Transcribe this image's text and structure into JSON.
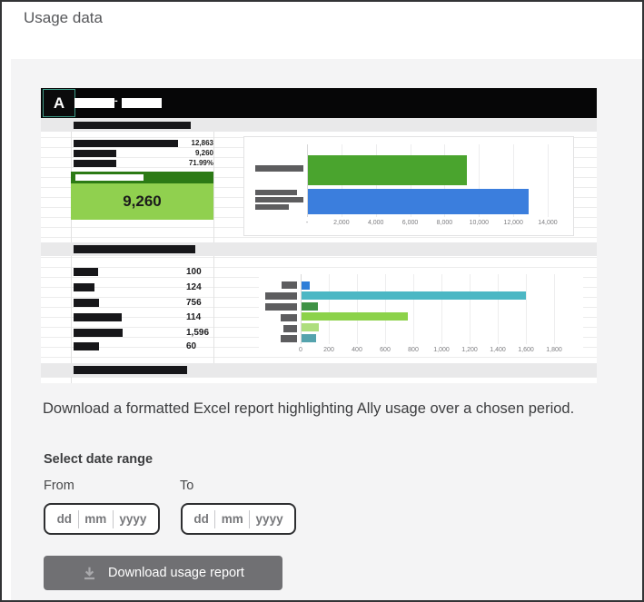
{
  "page": {
    "title": "Usage data"
  },
  "panel": {
    "description": "Download a formatted Excel report highlighting Ally usage over a chosen period.",
    "date_range": {
      "heading": "Select date range",
      "from_label": "From",
      "to_label": "To",
      "placeholders": {
        "day": "dd",
        "month": "mm",
        "year": "yyyy"
      }
    },
    "download_button": {
      "label": "Download usage report"
    }
  },
  "report_preview": {
    "logo_letter": "A",
    "header_separator": "-",
    "summary": {
      "rows": [
        {
          "value": "12,863"
        },
        {
          "value": "9,260"
        },
        {
          "value": "71.99%"
        }
      ],
      "highlight_value": "9,260"
    },
    "detail": {
      "rows": [
        {
          "value": "100"
        },
        {
          "value": "124"
        },
        {
          "value": "756"
        },
        {
          "value": "114"
        },
        {
          "value": "1,596"
        },
        {
          "value": "60"
        }
      ]
    }
  },
  "chart_data": [
    {
      "type": "bar",
      "orientation": "horizontal",
      "title": "",
      "categories": [
        "redacted-label-1",
        "redacted-label-2"
      ],
      "values": [
        9260,
        12863
      ],
      "colors": [
        "#4aa42e",
        "#3b7edd"
      ],
      "xlim": [
        0,
        14000
      ],
      "grid": true,
      "tick_labels": [
        "-",
        "2,000",
        "4,000",
        "6,000",
        "8,000",
        "10,000",
        "12,000",
        "14,000"
      ]
    },
    {
      "type": "bar",
      "orientation": "horizontal",
      "title": "",
      "categories": [
        "redacted-1",
        "redacted-2",
        "redacted-3",
        "redacted-4",
        "redacted-5",
        "redacted-6"
      ],
      "values": [
        60,
        1596,
        114,
        756,
        124,
        100
      ],
      "colors": [
        "#2f7ed8",
        "#4cb7c4",
        "#3f9245",
        "#8cd24a",
        "#aede7e",
        "#55a3ad"
      ],
      "xlim": [
        0,
        1800
      ],
      "grid": true,
      "tick_labels": [
        "0",
        "200",
        "400",
        "600",
        "800",
        "1,000",
        "1,200",
        "1,400",
        "1,600",
        "1,800"
      ]
    }
  ]
}
